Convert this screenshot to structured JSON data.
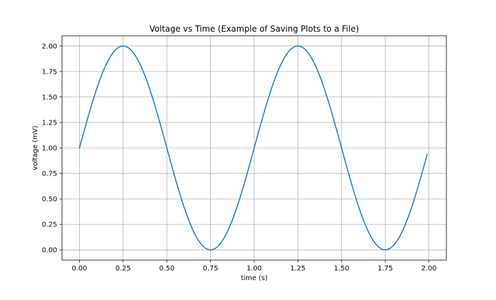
{
  "chart_data": {
    "type": "line",
    "title": "Voltage vs Time (Example of Saving Plots to a File)",
    "xlabel": "time (s)",
    "ylabel": "voltage (mV)",
    "xlim": [
      -0.1,
      2.1
    ],
    "ylim": [
      -0.1,
      2.1
    ],
    "xticks": [
      "0.00",
      "0.25",
      "0.50",
      "0.75",
      "1.00",
      "1.25",
      "1.50",
      "1.75",
      "2.00"
    ],
    "yticks": [
      "0.00",
      "0.25",
      "0.50",
      "0.75",
      "1.00",
      "1.25",
      "1.50",
      "1.75",
      "2.00"
    ],
    "grid": true,
    "series": [
      {
        "color": "#1f77b4",
        "x_start": 0.0,
        "x_end": 1.99,
        "x_step": 0.01,
        "function": "1 + sin(2*pi*t)"
      }
    ]
  }
}
